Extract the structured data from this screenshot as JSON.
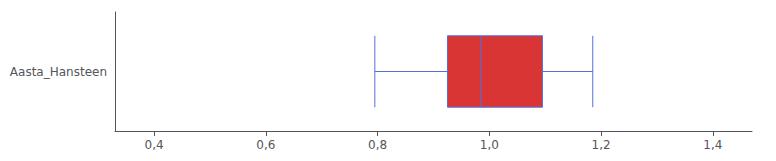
{
  "chart_data": {
    "type": "boxplot",
    "orientation": "horizontal",
    "categories": [
      "Aasta_Hansteen"
    ],
    "values": [
      [
        0.795,
        0.925,
        0.985,
        1.095,
        1.185
      ]
    ],
    "color": "#d93535",
    "xlim": [
      0.33,
      1.47
    ],
    "xticks": [
      {
        "value": 0.4,
        "label": "0,4"
      },
      {
        "value": 0.6,
        "label": "0,6"
      },
      {
        "value": 0.8,
        "label": "0,8"
      },
      {
        "value": 1.0,
        "label": "1,0"
      },
      {
        "value": 1.2,
        "label": "1,2"
      },
      {
        "value": 1.4,
        "label": "1,4"
      }
    ],
    "grid": false
  }
}
